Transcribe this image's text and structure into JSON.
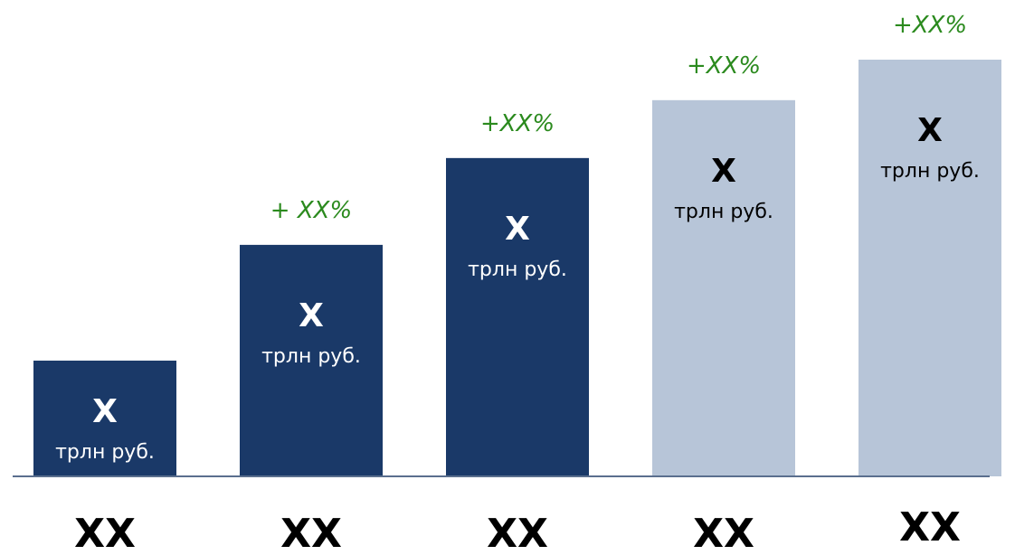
{
  "chart_data": {
    "type": "bar",
    "categories": [
      "XX",
      "XX",
      "XX",
      "XX",
      "XX"
    ],
    "values": [
      1.0,
      2.0,
      2.75,
      3.25,
      3.6
    ],
    "value_labels": [
      "X",
      "X",
      "X",
      "X",
      "X"
    ],
    "unit_labels": [
      "трлн руб.",
      "трлн руб.",
      "трлн руб.",
      "трлн руб.",
      "трлн руб."
    ],
    "growth_labels": [
      "",
      "+ XX%",
      "+XX%",
      "+XX%",
      "+XX%"
    ],
    "bar_colors": [
      "#1a3968",
      "#1a3968",
      "#1a3968",
      "#b7c5d8",
      "#b7c5d8"
    ],
    "title": "",
    "xlabel": "",
    "ylabel": "",
    "ylim": [
      0,
      3.6
    ],
    "grid": false,
    "legend": "none"
  },
  "colors": {
    "actual_bar": "#1a3968",
    "forecast_bar": "#b7c5d8",
    "growth_text": "#2b8a1e",
    "bar_text_on_dark": "#ffffff",
    "bar_text_on_light": "#000000",
    "baseline": "#5a6f8e",
    "category_text": "#000000"
  }
}
